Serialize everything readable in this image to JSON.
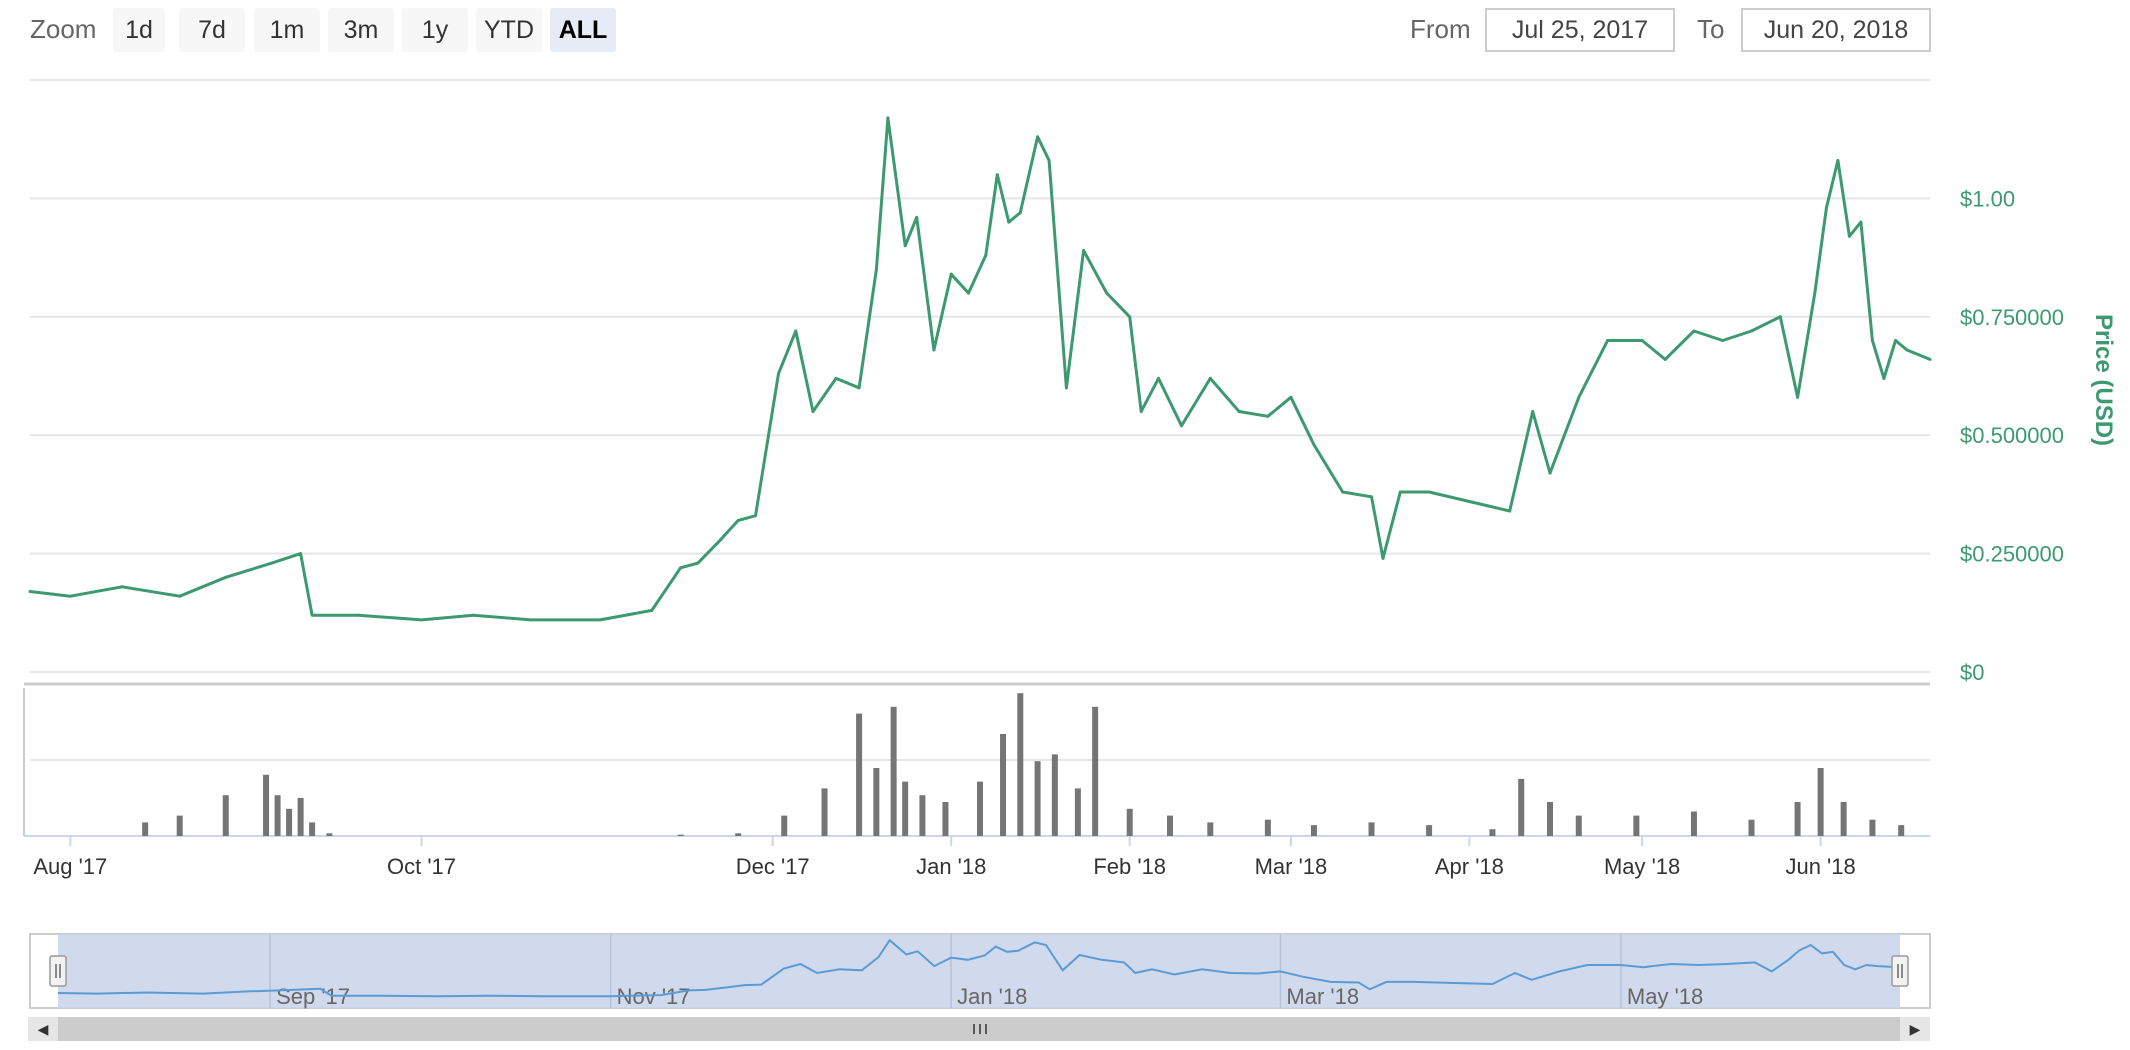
{
  "toolbar": {
    "zoom_label": "Zoom",
    "zoom_buttons": [
      "1d",
      "7d",
      "1m",
      "3m",
      "1y",
      "YTD",
      "ALL"
    ],
    "active_zoom": "ALL",
    "from_label": "From",
    "from_value": "Jul 25, 2017",
    "to_label": "To",
    "to_value": "Jun 20, 2018"
  },
  "colors": {
    "price_line": "#3d9970",
    "volume_bars": "#757575",
    "navigator_fill": "#ccd6eb",
    "navigator_line": "#5a9bd5",
    "grid": "#e6e6e6"
  },
  "chart_data": {
    "type": "line",
    "title": "",
    "ylabel": "Price (USD)",
    "y_ticks": [
      "$0",
      "$0.250000",
      "$0.500000",
      "$0.750000",
      "$1.00"
    ],
    "ylim": [
      0,
      1.25
    ],
    "xlim": [
      "2017-07-25",
      "2018-06-20"
    ],
    "x_ticks": [
      "Aug '17",
      "Oct '17",
      "Dec '17",
      "Jan '18",
      "Feb '18",
      "Mar '18",
      "Apr '18",
      "May '18",
      "Jun '18"
    ],
    "price_series": {
      "x": [
        "2017-07-25",
        "2017-08-01",
        "2017-08-10",
        "2017-08-20",
        "2017-08-28",
        "2017-09-05",
        "2017-09-10",
        "2017-09-12",
        "2017-09-20",
        "2017-10-01",
        "2017-10-10",
        "2017-10-20",
        "2017-11-01",
        "2017-11-10",
        "2017-11-15",
        "2017-11-18",
        "2017-11-22",
        "2017-11-25",
        "2017-11-28",
        "2017-12-02",
        "2017-12-05",
        "2017-12-08",
        "2017-12-12",
        "2017-12-16",
        "2017-12-19",
        "2017-12-21",
        "2017-12-24",
        "2017-12-26",
        "2017-12-29",
        "2018-01-01",
        "2018-01-04",
        "2018-01-07",
        "2018-01-09",
        "2018-01-11",
        "2018-01-13",
        "2018-01-16",
        "2018-01-18",
        "2018-01-21",
        "2018-01-24",
        "2018-01-28",
        "2018-02-01",
        "2018-02-03",
        "2018-02-06",
        "2018-02-10",
        "2018-02-15",
        "2018-02-20",
        "2018-02-25",
        "2018-03-01",
        "2018-03-05",
        "2018-03-10",
        "2018-03-15",
        "2018-03-17",
        "2018-03-20",
        "2018-03-25",
        "2018-04-01",
        "2018-04-08",
        "2018-04-12",
        "2018-04-15",
        "2018-04-20",
        "2018-04-25",
        "2018-05-01",
        "2018-05-05",
        "2018-05-10",
        "2018-05-15",
        "2018-05-20",
        "2018-05-25",
        "2018-05-28",
        "2018-05-31",
        "2018-06-02",
        "2018-06-04",
        "2018-06-06",
        "2018-06-08",
        "2018-06-10",
        "2018-06-12",
        "2018-06-14",
        "2018-06-16",
        "2018-06-20"
      ],
      "y": [
        0.17,
        0.16,
        0.18,
        0.16,
        0.2,
        0.23,
        0.25,
        0.12,
        0.12,
        0.11,
        0.12,
        0.11,
        0.11,
        0.13,
        0.22,
        0.23,
        0.28,
        0.32,
        0.33,
        0.63,
        0.72,
        0.55,
        0.62,
        0.6,
        0.85,
        1.17,
        0.9,
        0.96,
        0.68,
        0.84,
        0.8,
        0.88,
        1.05,
        0.95,
        0.97,
        1.13,
        1.08,
        0.6,
        0.89,
        0.8,
        0.75,
        0.55,
        0.62,
        0.52,
        0.62,
        0.55,
        0.54,
        0.58,
        0.48,
        0.38,
        0.37,
        0.24,
        0.38,
        0.38,
        0.36,
        0.34,
        0.55,
        0.42,
        0.58,
        0.7,
        0.7,
        0.66,
        0.72,
        0.7,
        0.72,
        0.75,
        0.58,
        0.8,
        0.98,
        1.08,
        0.92,
        0.95,
        0.7,
        0.62,
        0.7,
        0.68,
        0.66
      ]
    },
    "volume_series": {
      "x": [
        "2017-08-14",
        "2017-08-20",
        "2017-08-28",
        "2017-09-04",
        "2017-09-06",
        "2017-09-08",
        "2017-09-10",
        "2017-09-12",
        "2017-09-15",
        "2017-11-15",
        "2017-11-25",
        "2017-12-03",
        "2017-12-10",
        "2017-12-16",
        "2017-12-19",
        "2017-12-22",
        "2017-12-24",
        "2017-12-27",
        "2017-12-31",
        "2018-01-06",
        "2018-01-10",
        "2018-01-13",
        "2018-01-16",
        "2018-01-19",
        "2018-01-23",
        "2018-01-26",
        "2018-02-01",
        "2018-02-08",
        "2018-02-15",
        "2018-02-25",
        "2018-03-05",
        "2018-03-15",
        "2018-03-25",
        "2018-04-05",
        "2018-04-10",
        "2018-04-15",
        "2018-04-20",
        "2018-04-30",
        "2018-05-10",
        "2018-05-20",
        "2018-05-28",
        "2018-06-01",
        "2018-06-05",
        "2018-06-10",
        "2018-06-15"
      ],
      "y": [
        0.1,
        0.15,
        0.3,
        0.45,
        0.3,
        0.2,
        0.28,
        0.1,
        0.02,
        0.01,
        0.02,
        0.15,
        0.35,
        0.9,
        0.5,
        0.95,
        0.4,
        0.3,
        0.25,
        0.4,
        0.75,
        1.05,
        0.55,
        0.6,
        0.35,
        0.95,
        0.2,
        0.15,
        0.1,
        0.12,
        0.08,
        0.1,
        0.08,
        0.05,
        0.42,
        0.25,
        0.15,
        0.15,
        0.18,
        0.12,
        0.25,
        0.5,
        0.25,
        0.12,
        0.08
      ]
    },
    "legend": "none",
    "grid": true,
    "navigator_ticks": [
      "Sep '17",
      "Nov '17",
      "Jan '18",
      "Mar '18",
      "May '18"
    ]
  }
}
